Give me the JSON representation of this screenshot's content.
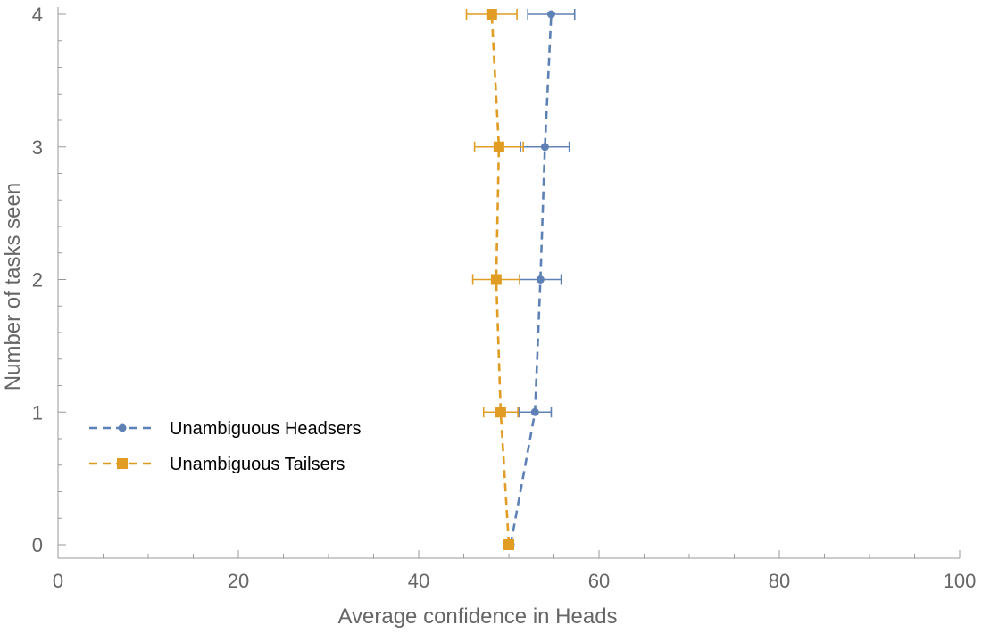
{
  "chart_data": {
    "type": "scatter",
    "title": "",
    "xlabel": "Average confidence in Heads",
    "ylabel": "Number of tasks seen",
    "xlim": [
      0,
      100
    ],
    "ylim": [
      0,
      4
    ],
    "x_ticks": [
      "0",
      "20",
      "40",
      "60",
      "80",
      "100"
    ],
    "y_ticks": [
      "0",
      "1",
      "2",
      "3",
      "4"
    ],
    "grid": false,
    "legend_position": "left",
    "series": [
      {
        "name": "Unambiguous Headsers",
        "color": "#5E81B5",
        "marker": "circle",
        "line": "dashed",
        "points": [
          {
            "x": 50.2,
            "y": 0,
            "err": null
          },
          {
            "x": 52.9,
            "y": 1,
            "err": 1.8
          },
          {
            "x": 53.5,
            "y": 2,
            "err": 2.3
          },
          {
            "x": 54.0,
            "y": 3,
            "err": 2.7
          },
          {
            "x": 54.7,
            "y": 4,
            "err": 2.6
          }
        ]
      },
      {
        "name": "Unambiguous Tailsers",
        "color": "#E19C24",
        "marker": "square",
        "line": "dashed",
        "points": [
          {
            "x": 50.0,
            "y": 0,
            "err": null
          },
          {
            "x": 49.1,
            "y": 1,
            "err": 1.9
          },
          {
            "x": 48.6,
            "y": 2,
            "err": 2.6
          },
          {
            "x": 48.9,
            "y": 3,
            "err": 2.7
          },
          {
            "x": 48.1,
            "y": 4,
            "err": 2.8
          }
        ]
      }
    ]
  }
}
